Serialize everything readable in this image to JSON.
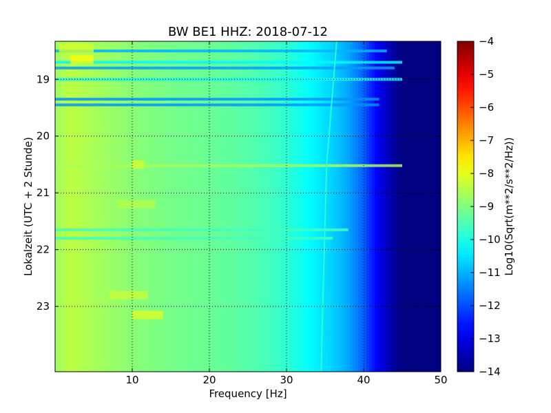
{
  "chart_data": {
    "type": "heatmap",
    "title": "BW BE1 HHZ: 2018-07-12",
    "xlabel": "Frequency [Hz]",
    "ylabel": "Lokalzeit (UTC + 2 Stunde)",
    "xlim": [
      0,
      50
    ],
    "ylim": [
      18.33,
      24.15
    ],
    "y_inverted": true,
    "x_ticks": [
      10,
      20,
      30,
      40,
      50
    ],
    "x_tick_labels": [
      "10",
      "20",
      "30",
      "40",
      "50"
    ],
    "y_ticks": [
      19,
      20,
      21,
      22,
      23
    ],
    "y_tick_labels": [
      "19",
      "20",
      "21",
      "22",
      "23"
    ],
    "grid": true,
    "colormap": "jet",
    "colorbar": {
      "label": "Log10(Sqrt(m**2/s**2/Hz))",
      "range": [
        -14,
        -4
      ],
      "ticks": [
        -4,
        -5,
        -6,
        -7,
        -8,
        -9,
        -10,
        -11,
        -12,
        -13,
        -14
      ],
      "tick_labels": [
        "−4",
        "−5",
        "−6",
        "−7",
        "−8",
        "−9",
        "−10",
        "−11",
        "−12",
        "−13",
        "−14"
      ]
    },
    "frequency_profile": {
      "frequency_hz": [
        0,
        2,
        5,
        10,
        15,
        20,
        25,
        28,
        30,
        32,
        34,
        36,
        38,
        40,
        41,
        42,
        43,
        44,
        45,
        50
      ],
      "log10_amplitude": [
        -8.7,
        -8.4,
        -8.6,
        -8.9,
        -9.1,
        -9.2,
        -9.4,
        -9.6,
        -9.8,
        -10.1,
        -10.4,
        -10.7,
        -11.1,
        -11.8,
        -12.4,
        -12.9,
        -13.3,
        -13.7,
        -14.0,
        -14.0
      ]
    },
    "horizontal_lines": [
      {
        "time": 18.5,
        "f_max": 43,
        "log10_amplitude": -11.0
      },
      {
        "time": 18.7,
        "f_max": 45,
        "log10_amplitude": -10.3
      },
      {
        "time": 18.8,
        "f_max": 44,
        "log10_amplitude": -11.2
      },
      {
        "time": 19.0,
        "f_max": 45,
        "log10_amplitude": -10.2
      },
      {
        "time": 19.35,
        "f_max": 42,
        "log10_amplitude": -11.3
      },
      {
        "time": 19.45,
        "f_max": 42,
        "log10_amplitude": -11.3
      },
      {
        "time": 20.52,
        "f_max": 45,
        "log10_amplitude": -8.6
      },
      {
        "time": 21.65,
        "f_max": 38,
        "log10_amplitude": -9.6
      },
      {
        "time": 21.8,
        "f_max": 36,
        "log10_amplitude": -9.6
      }
    ],
    "hot_spots": [
      {
        "time": 18.45,
        "f_start": 0.5,
        "f_end": 5,
        "log10_amplitude": -8.2
      },
      {
        "time": 18.65,
        "f_start": 2,
        "f_end": 5,
        "log10_amplitude": -7.8
      },
      {
        "time": 20.5,
        "f_start": 10,
        "f_end": 11.5,
        "log10_amplitude": -8.2
      },
      {
        "time": 21.2,
        "f_start": 8,
        "f_end": 13,
        "log10_amplitude": -8.5
      },
      {
        "time": 22.8,
        "f_start": 7,
        "f_end": 12,
        "log10_amplitude": -8.3
      },
      {
        "time": 23.15,
        "f_start": 10,
        "f_end": 14,
        "log10_amplitude": -8.1
      }
    ],
    "drift_line": {
      "time": [
        18.33,
        19.5,
        20.5,
        21.5,
        22.5,
        23.5,
        24.15
      ],
      "frequency_hz": [
        36.5,
        35.8,
        35.2,
        35.0,
        34.8,
        34.6,
        34.5
      ],
      "log10_amplitude": [
        -9.8,
        -9.8,
        -9.8,
        -9.8,
        -9.8,
        -9.8,
        -9.8
      ]
    }
  }
}
